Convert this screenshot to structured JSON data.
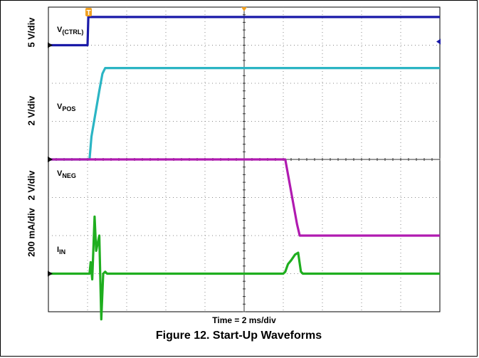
{
  "figure": {
    "caption": "Figure 12. Start-Up Waveforms",
    "timebase_label": "Time = 2 ms/div"
  },
  "scale_labels": [
    "5 V/div",
    "2 V/div",
    "2 V/div",
    "200 mA/div"
  ],
  "trace_labels": [
    {
      "main": "V",
      "sub": "(CTRL)"
    },
    {
      "main": "V",
      "sub": "POS"
    },
    {
      "main": "V",
      "sub": "NEG"
    },
    {
      "main": "I",
      "sub": "IN"
    }
  ],
  "markers": {
    "trigger": "T"
  },
  "chart_data": {
    "type": "line",
    "x_unit": "div",
    "y_unit": "div",
    "xlim": [
      0,
      10
    ],
    "ylim": [
      0,
      8
    ],
    "grid": true,
    "colors": {
      "ctrl": "#1a1aa8",
      "pos": "#2bb5c4",
      "neg": "#b01ab0",
      "iin": "#1fae1f",
      "trigger": "#f0a020",
      "background": "#ffffff"
    },
    "series": [
      {
        "name": "V(CTRL)",
        "color_key": "ctrl",
        "ground": 7.0,
        "x": [
          0,
          1.0,
          1.02,
          10
        ],
        "y": [
          7.0,
          7.0,
          7.74,
          7.74
        ]
      },
      {
        "name": "VPOS",
        "color_key": "pos",
        "ground": 4.0,
        "x": [
          0,
          1.05,
          1.1,
          1.2,
          1.3,
          1.38,
          1.45,
          10
        ],
        "y": [
          4.0,
          4.0,
          4.6,
          5.2,
          5.8,
          6.25,
          6.4,
          6.4
        ]
      },
      {
        "name": "VNEG",
        "color_key": "neg",
        "ground": 4.0,
        "x": [
          0,
          6.05,
          6.35,
          6.42,
          10
        ],
        "y": [
          4.0,
          4.0,
          2.3,
          2.0,
          2.0
        ]
      },
      {
        "name": "IIN",
        "color_key": "iin",
        "ground": 1.0,
        "x": [
          0,
          1.05,
          1.08,
          1.12,
          1.18,
          1.22,
          1.3,
          1.35,
          1.4,
          1.45,
          1.5,
          6.0,
          6.05,
          6.12,
          6.2,
          6.3,
          6.38,
          6.45,
          6.5,
          10
        ],
        "y": [
          1.0,
          1.0,
          1.3,
          0.85,
          2.5,
          1.6,
          2.0,
          -0.2,
          1.0,
          1.05,
          1.0,
          1.0,
          1.05,
          1.25,
          1.35,
          1.5,
          1.55,
          1.05,
          1.0,
          1.0
        ]
      }
    ]
  }
}
